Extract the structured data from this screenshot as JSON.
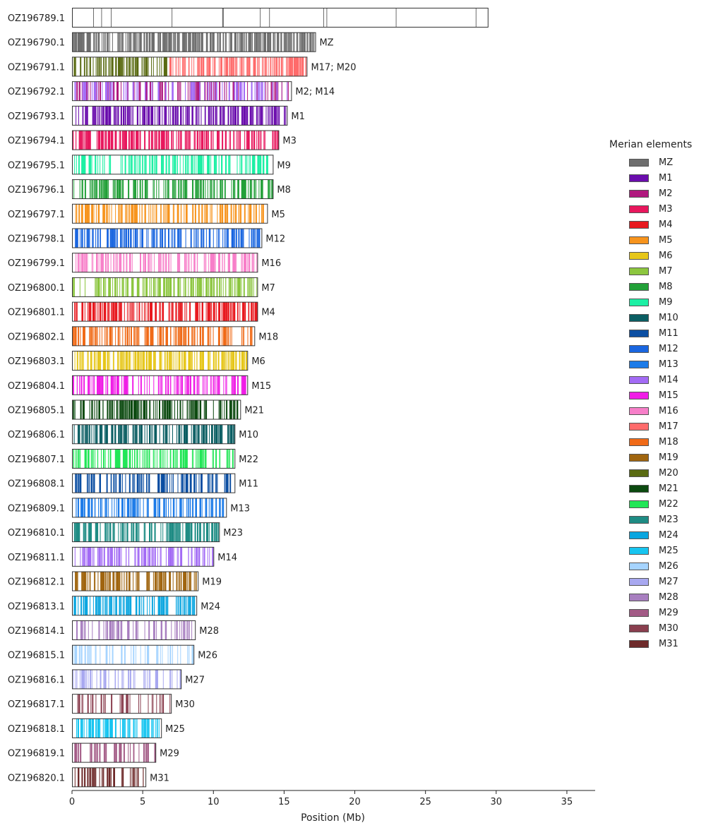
{
  "chart_data": {
    "type": "chromosome-painting",
    "xlabel": "Position (Mb)",
    "xlim": [
      0,
      37
    ],
    "xticks": [
      0,
      5,
      10,
      15,
      20,
      25,
      30,
      35
    ],
    "legend_title": "Merian elements",
    "legend_position": "right",
    "elements": [
      {
        "name": "MZ",
        "color": "#6e6e6e"
      },
      {
        "name": "M1",
        "color": "#6a0dad"
      },
      {
        "name": "M2",
        "color": "#b0197e"
      },
      {
        "name": "M3",
        "color": "#e8175d"
      },
      {
        "name": "M4",
        "color": "#e8191f"
      },
      {
        "name": "M5",
        "color": "#f7941d"
      },
      {
        "name": "M6",
        "color": "#e6c619"
      },
      {
        "name": "M7",
        "color": "#8cc63f"
      },
      {
        "name": "M8",
        "color": "#22a038"
      },
      {
        "name": "M9",
        "color": "#1cf0a4"
      },
      {
        "name": "M10",
        "color": "#0b5e63"
      },
      {
        "name": "M11",
        "color": "#0b4ea2"
      },
      {
        "name": "M12",
        "color": "#1a66e0"
      },
      {
        "name": "M13",
        "color": "#1c7be8"
      },
      {
        "name": "M14",
        "color": "#a36bf5"
      },
      {
        "name": "M15",
        "color": "#f01de6"
      },
      {
        "name": "M16",
        "color": "#f77fc9"
      },
      {
        "name": "M17",
        "color": "#ff6b6b"
      },
      {
        "name": "M18",
        "color": "#f06a17"
      },
      {
        "name": "M19",
        "color": "#a0650f"
      },
      {
        "name": "M20",
        "color": "#5a6b12"
      },
      {
        "name": "M21",
        "color": "#0c4a10"
      },
      {
        "name": "M22",
        "color": "#22e657"
      },
      {
        "name": "M23",
        "color": "#1e8c84"
      },
      {
        "name": "M24",
        "color": "#0aa6e0"
      },
      {
        "name": "M25",
        "color": "#17c5f0"
      },
      {
        "name": "M26",
        "color": "#a6d4ff"
      },
      {
        "name": "M27",
        "color": "#a8a8f0"
      },
      {
        "name": "M28",
        "color": "#a87fc0"
      },
      {
        "name": "M29",
        "color": "#a35b86"
      },
      {
        "name": "M30",
        "color": "#8a3f4f"
      },
      {
        "name": "M31",
        "color": "#6e2a2a"
      }
    ],
    "chromosomes": [
      {
        "name": "OZ196789.1",
        "length": 29.4,
        "label": "",
        "elements": [
          "MZ"
        ],
        "density": 0.02,
        "seed": 7
      },
      {
        "name": "OZ196790.1",
        "length": 17.2,
        "label": "MZ",
        "elements": [
          "MZ"
        ],
        "density": 0.75,
        "seed": 11
      },
      {
        "name": "OZ196791.1",
        "length": 16.6,
        "label": "M17; M20",
        "elements": [
          "M20",
          "M17"
        ],
        "split": 6.8,
        "density": 0.6,
        "seed": 13
      },
      {
        "name": "OZ196792.1",
        "length": 15.5,
        "label": "M2; M14",
        "elements": [
          "M2",
          "M14"
        ],
        "density": 0.55,
        "seed": 17
      },
      {
        "name": "OZ196793.1",
        "length": 15.2,
        "label": "M1",
        "elements": [
          "M1"
        ],
        "density": 0.6,
        "seed": 19
      },
      {
        "name": "OZ196794.1",
        "length": 14.6,
        "label": "M3",
        "elements": [
          "M3"
        ],
        "density": 0.65,
        "seed": 23
      },
      {
        "name": "OZ196795.1",
        "length": 14.2,
        "label": "M9",
        "elements": [
          "M9"
        ],
        "density": 0.5,
        "seed": 29
      },
      {
        "name": "OZ196796.1",
        "length": 14.2,
        "label": "M8",
        "elements": [
          "M8"
        ],
        "density": 0.55,
        "seed": 31
      },
      {
        "name": "OZ196797.1",
        "length": 13.8,
        "label": "M5",
        "elements": [
          "M5"
        ],
        "density": 0.5,
        "seed": 37
      },
      {
        "name": "OZ196798.1",
        "length": 13.4,
        "label": "M12",
        "elements": [
          "M12"
        ],
        "density": 0.55,
        "seed": 41
      },
      {
        "name": "OZ196799.1",
        "length": 13.1,
        "label": "M16",
        "elements": [
          "M16"
        ],
        "density": 0.45,
        "seed": 43
      },
      {
        "name": "OZ196800.1",
        "length": 13.1,
        "label": "M7",
        "elements": [
          "M7"
        ],
        "density": 0.55,
        "seed": 47
      },
      {
        "name": "OZ196801.1",
        "length": 13.1,
        "label": "M4",
        "elements": [
          "M4"
        ],
        "density": 0.6,
        "seed": 53
      },
      {
        "name": "OZ196802.1",
        "length": 12.9,
        "label": "M18",
        "elements": [
          "M18"
        ],
        "density": 0.5,
        "seed": 59
      },
      {
        "name": "OZ196803.1",
        "length": 12.4,
        "label": "M6",
        "elements": [
          "M6"
        ],
        "density": 0.65,
        "seed": 61
      },
      {
        "name": "OZ196804.1",
        "length": 12.4,
        "label": "M15",
        "elements": [
          "M15"
        ],
        "density": 0.5,
        "seed": 67
      },
      {
        "name": "OZ196805.1",
        "length": 11.9,
        "label": "M21",
        "elements": [
          "M21"
        ],
        "density": 0.55,
        "seed": 71
      },
      {
        "name": "OZ196806.1",
        "length": 11.5,
        "label": "M10",
        "elements": [
          "M10"
        ],
        "density": 0.6,
        "seed": 73
      },
      {
        "name": "OZ196807.1",
        "length": 11.5,
        "label": "M22",
        "elements": [
          "M22"
        ],
        "density": 0.5,
        "seed": 79
      },
      {
        "name": "OZ196808.1",
        "length": 11.5,
        "label": "M11",
        "elements": [
          "M11"
        ],
        "density": 0.45,
        "seed": 83
      },
      {
        "name": "OZ196809.1",
        "length": 10.9,
        "label": "M13",
        "elements": [
          "M13"
        ],
        "density": 0.55,
        "seed": 89
      },
      {
        "name": "OZ196810.1",
        "length": 10.4,
        "label": "M23",
        "elements": [
          "M23"
        ],
        "density": 0.55,
        "seed": 97
      },
      {
        "name": "OZ196811.1",
        "length": 10.0,
        "label": "M14",
        "elements": [
          "M14"
        ],
        "density": 0.5,
        "seed": 101
      },
      {
        "name": "OZ196812.1",
        "length": 8.9,
        "label": "M19",
        "elements": [
          "M19"
        ],
        "density": 0.6,
        "seed": 103
      },
      {
        "name": "OZ196813.1",
        "length": 8.8,
        "label": "M24",
        "elements": [
          "M24"
        ],
        "density": 0.6,
        "seed": 107
      },
      {
        "name": "OZ196814.1",
        "length": 8.7,
        "label": "M28",
        "elements": [
          "M28"
        ],
        "density": 0.35,
        "seed": 109
      },
      {
        "name": "OZ196815.1",
        "length": 8.6,
        "label": "M26",
        "elements": [
          "M26"
        ],
        "density": 0.3,
        "seed": 113
      },
      {
        "name": "OZ196816.1",
        "length": 7.7,
        "label": "M27",
        "elements": [
          "M27"
        ],
        "density": 0.3,
        "seed": 127
      },
      {
        "name": "OZ196817.1",
        "length": 7.0,
        "label": "M30",
        "elements": [
          "M30"
        ],
        "density": 0.25,
        "seed": 131
      },
      {
        "name": "OZ196818.1",
        "length": 6.3,
        "label": "M25",
        "elements": [
          "M25"
        ],
        "density": 0.6,
        "seed": 137
      },
      {
        "name": "OZ196819.1",
        "length": 5.9,
        "label": "M29",
        "elements": [
          "M29"
        ],
        "density": 0.4,
        "seed": 139
      },
      {
        "name": "OZ196820.1",
        "length": 5.2,
        "label": "M31",
        "elements": [
          "M31"
        ],
        "density": 0.4,
        "seed": 149
      }
    ]
  }
}
